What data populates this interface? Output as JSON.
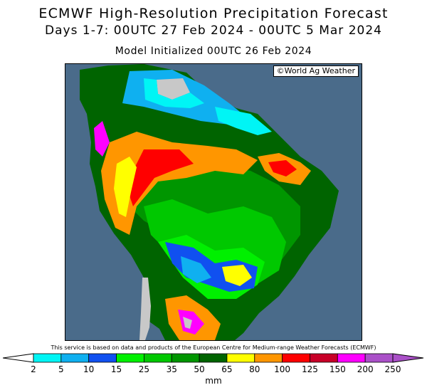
{
  "header": {
    "title": "ECMWF High-Resolution Precipitation Forecast",
    "period": "Days 1-7: 00UTC 27 Feb 2024 - 00UTC 5 Mar 2024",
    "init": "Model Initialized 00UTC 26 Feb 2024"
  },
  "map": {
    "credit": "©World Ag Weather",
    "ocean_color": "#4a6b8a",
    "land_color": "#c8c8c8"
  },
  "footer": {
    "disclaimer": "This service is based on data and products of the European Centre for Medium-range Weather Forecasts (ECMWF)",
    "unit": "mm"
  },
  "legend": {
    "ticks": [
      "2",
      "5",
      "10",
      "15",
      "25",
      "35",
      "50",
      "65",
      "80",
      "100",
      "125",
      "150",
      "200",
      "250"
    ],
    "colors": [
      "#00f5f5",
      "#0fb0f0",
      "#1050f0",
      "#00f000",
      "#00c800",
      "#009600",
      "#006400",
      "#ffff00",
      "#ff9600",
      "#ff0000",
      "#c80028",
      "#ff00ff",
      "#aa50c8"
    ]
  }
}
